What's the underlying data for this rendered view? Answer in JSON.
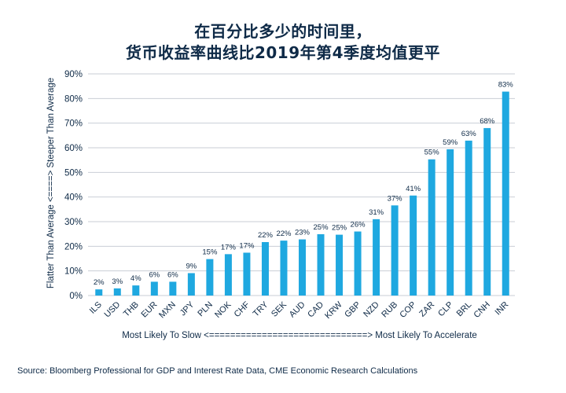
{
  "title": [
    "在百分比多少的时间里，",
    "货币收益率曲线比2019年第4季度均值更平"
  ],
  "source": "Source: Bloomberg Professional for GDP and Interest Rate Data, CME Economic Research Calculations",
  "chart_data": {
    "type": "bar",
    "title": "在百分比多少的时间里，货币收益率曲线比2019年第4季度均值更平",
    "xlabel": "Most Likely To Slow <==============================> Most Likely To Accelerate",
    "ylabel": "Flatter Than Average <====> Steeper Than Average",
    "categories": [
      "ILS",
      "USD",
      "THB",
      "EUR",
      "MXN",
      "JPY",
      "PLN",
      "NOK",
      "CHF",
      "TRY",
      "SEK",
      "AUD",
      "CAD",
      "KRW",
      "GBP",
      "NZD",
      "RUB",
      "COP",
      "ZAR",
      "CLP",
      "BRL",
      "CNH",
      "INR"
    ],
    "values": [
      2.5,
      2.9,
      4.1,
      5.6,
      5.6,
      9.1,
      14.8,
      16.8,
      17.4,
      21.7,
      22.3,
      22.8,
      24.9,
      24.7,
      26.0,
      31.0,
      36.6,
      40.6,
      55.3,
      59.4,
      62.9,
      68.0,
      82.8
    ],
    "value_labels": [
      "2%",
      "3%",
      "4%",
      "6%",
      "6%",
      "9%",
      "15%",
      "17%",
      "17%",
      "22%",
      "22%",
      "23%",
      "25%",
      "25%",
      "26%",
      "31%",
      "37%",
      "41%",
      "55%",
      "59%",
      "63%",
      "68%",
      "83%"
    ],
    "ylim": [
      0,
      90
    ],
    "yticks": [
      0,
      10,
      20,
      30,
      40,
      50,
      60,
      70,
      80,
      90
    ],
    "ytick_labels": [
      "0%",
      "10%",
      "20%",
      "30%",
      "40%",
      "50%",
      "60%",
      "70%",
      "80%",
      "90%"
    ],
    "grid": true,
    "legend": "none",
    "colors": {
      "bar": "#1fa8e0",
      "grid": "#c9ced6",
      "text": "#0e2a47",
      "title": "#0e2a47"
    }
  }
}
